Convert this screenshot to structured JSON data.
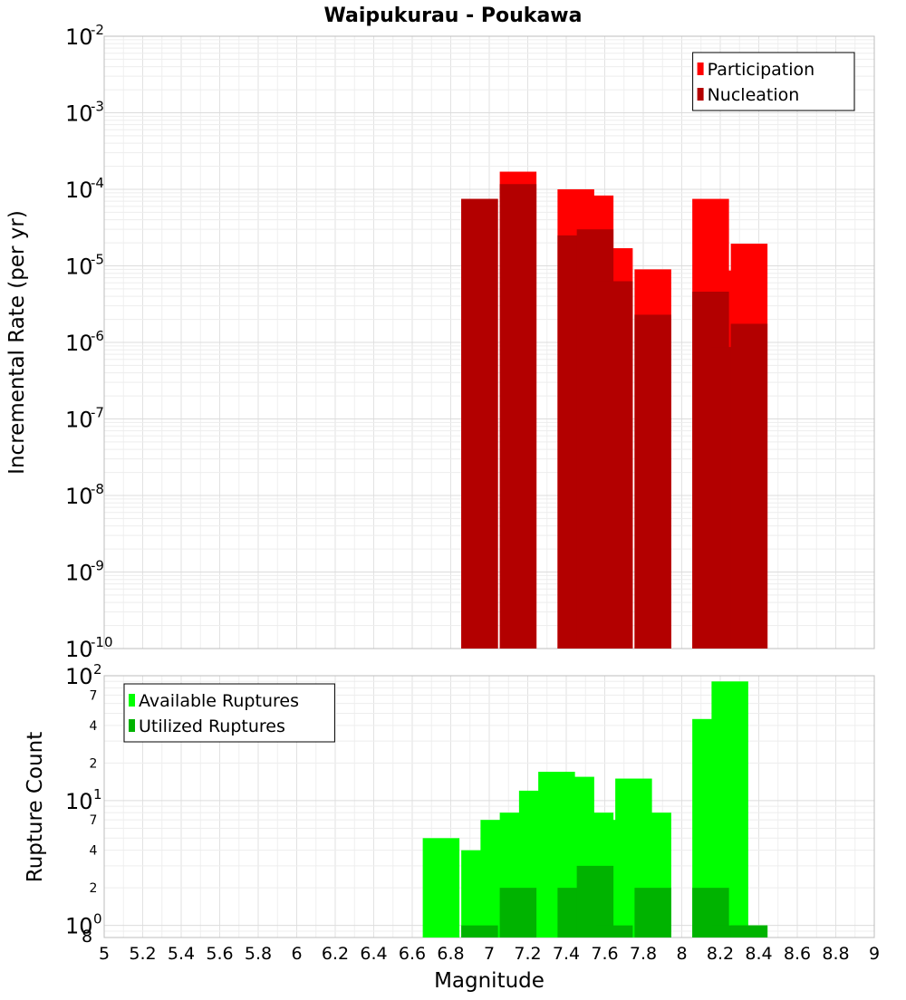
{
  "chart_data": {
    "type": "bar",
    "title": "Waipukurau - Poukawa",
    "xlabel": "Magnitude",
    "x_ticks": [
      "5",
      "5.2",
      "5.4",
      "5.6",
      "5.8",
      "6",
      "6.2",
      "6.4",
      "6.6",
      "6.8",
      "7",
      "7.2",
      "7.4",
      "7.6",
      "7.8",
      "8",
      "8.2",
      "8.4",
      "8.6",
      "8.8",
      "9"
    ],
    "xlim": [
      5,
      9
    ],
    "grid": true,
    "panels": [
      {
        "name": "rates",
        "ylabel": "Incremental Rate (per yr)",
        "yscale": "log",
        "ylim": [
          1e-10,
          0.01
        ],
        "y_tick_base": "10",
        "y_tick_exponents": [
          "-2",
          "-3",
          "-4",
          "-5",
          "-6",
          "-7",
          "-8",
          "-9",
          "-10"
        ],
        "legend_position": "top-right",
        "series": [
          {
            "name": "Participation",
            "color": "#ff0000",
            "points": [
              [
                6.95,
                7.5e-05
              ],
              [
                7.15,
                0.00017
              ],
              [
                7.45,
                0.0001
              ],
              [
                7.55,
                8.3e-05
              ],
              [
                7.65,
                1.7e-05
              ],
              [
                7.85,
                9e-06
              ],
              [
                8.15,
                7.5e-05
              ],
              [
                8.25,
                8.7e-06
              ],
              [
                8.35,
                1.95e-05
              ]
            ]
          },
          {
            "name": "Nucleation",
            "color": "#b30000",
            "points": [
              [
                6.95,
                7.5e-05
              ],
              [
                7.15,
                0.000117
              ],
              [
                7.45,
                2.5e-05
              ],
              [
                7.55,
                3e-05
              ],
              [
                7.65,
                6.3e-06
              ],
              [
                7.85,
                2.3e-06
              ],
              [
                8.15,
                4.6e-06
              ],
              [
                8.25,
                8.7e-07
              ],
              [
                8.35,
                1.75e-06
              ]
            ]
          }
        ]
      },
      {
        "name": "counts",
        "ylabel": "Rupture Count",
        "yscale": "log",
        "ylim": [
          0.8,
          100
        ],
        "major_ticks": [
          {
            "base": "10",
            "exp": "2"
          },
          {
            "base": "10",
            "exp": "1"
          },
          {
            "base": "10",
            "exp": "0"
          }
        ],
        "minor_ticks": [
          "7",
          "4",
          "2",
          "7",
          "4",
          "2",
          "8"
        ],
        "legend_position": "top-left",
        "series": [
          {
            "name": "Available Ruptures",
            "color": "#00ff00",
            "points": [
              [
                6.75,
                5
              ],
              [
                6.95,
                4
              ],
              [
                7.05,
                7
              ],
              [
                7.15,
                8
              ],
              [
                7.25,
                12
              ],
              [
                7.35,
                17
              ],
              [
                7.45,
                15.5
              ],
              [
                7.55,
                8
              ],
              [
                7.65,
                7
              ],
              [
                7.75,
                15
              ],
              [
                7.85,
                8
              ],
              [
                8.15,
                45
              ],
              [
                8.25,
                90
              ],
              [
                8.35,
                1
              ]
            ]
          },
          {
            "name": "Utilized Ruptures",
            "color": "#00b300",
            "points": [
              [
                6.95,
                1
              ],
              [
                7.15,
                2
              ],
              [
                7.45,
                2
              ],
              [
                7.55,
                3
              ],
              [
                7.65,
                1
              ],
              [
                7.85,
                2
              ],
              [
                8.15,
                2
              ],
              [
                8.25,
                1
              ],
              [
                8.35,
                1
              ]
            ]
          }
        ]
      }
    ]
  }
}
